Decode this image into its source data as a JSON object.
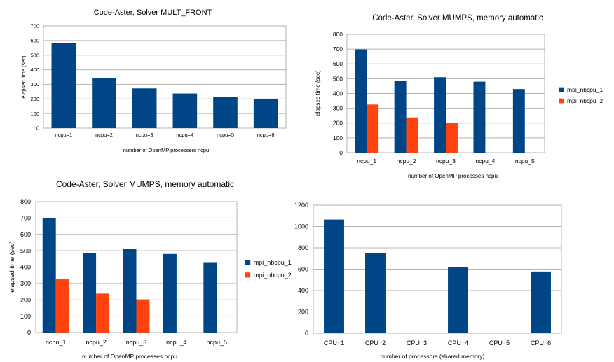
{
  "chart_data": [
    {
      "type": "bar",
      "title": "Code-Aster, Solver MULT_FRONT",
      "xlabel": "number of OpenMP processers ncpu",
      "ylabel": "elapsed time (sec)",
      "categories": [
        "ncpu=1",
        "ncpu=2",
        "ncpu=3",
        "ncpu=4",
        "ncpu=5",
        "ncpu=6"
      ],
      "series": [
        {
          "values": [
            585,
            345,
            272,
            237,
            215,
            198
          ],
          "color": "#004586"
        }
      ],
      "ylim": [
        0,
        700
      ],
      "yticks": [
        0,
        100,
        200,
        300,
        400,
        500,
        600,
        700
      ],
      "grid": true,
      "legend": "none"
    },
    {
      "type": "bar",
      "title": "Code-Aster, Solver MUMPS, memory automatic",
      "xlabel": "number of OpenMP processes ncpu",
      "ylabel": "elapsed time (sec)",
      "categories": [
        "ncpu_1",
        "ncpu_2",
        "ncpu_3",
        "ncpu_4",
        "ncpu_5"
      ],
      "series": [
        {
          "name": "mpi_nbcpu_1",
          "values": [
            698,
            485,
            510,
            480,
            430
          ],
          "color": "#004586"
        },
        {
          "name": "mpi_nbcpu_2",
          "values": [
            325,
            238,
            203,
            null,
            null
          ],
          "color": "#ff420e"
        }
      ],
      "ylim": [
        0,
        800
      ],
      "yticks": [
        0,
        100,
        200,
        300,
        400,
        500,
        600,
        700,
        800
      ],
      "grid": true,
      "legend": "right"
    },
    {
      "type": "bar",
      "title": "Code-Aster, Solver MUMPS, memory automatic",
      "xlabel": "number of OpenMP processes ncpu",
      "ylabel": "elapsed time (sec)",
      "categories": [
        "ncpu_1",
        "ncpu_2",
        "ncpu_3",
        "ncpu_4",
        "ncpu_5"
      ],
      "series": [
        {
          "name": "mpi_nbcpu_1",
          "values": [
            698,
            485,
            510,
            480,
            430
          ],
          "color": "#004586"
        },
        {
          "name": "mpi_nbcpu_2",
          "values": [
            325,
            238,
            203,
            null,
            null
          ],
          "color": "#ff420e"
        }
      ],
      "ylim": [
        0,
        800
      ],
      "yticks": [
        0,
        100,
        200,
        300,
        400,
        500,
        600,
        700,
        800
      ],
      "grid": true,
      "legend": "right"
    },
    {
      "type": "bar",
      "title": "",
      "xlabel": "number of processors (shared memory)",
      "ylabel": "",
      "categories": [
        "CPU=1",
        "CPU=2",
        "CPU=3",
        "CPU=4",
        "CPU=5",
        "CPU=6"
      ],
      "series": [
        {
          "values": [
            1065,
            752,
            null,
            617,
            null,
            578
          ],
          "color": "#004586"
        }
      ],
      "ylim": [
        0,
        1200
      ],
      "yticks": [
        0,
        200,
        400,
        600,
        800,
        1000,
        1200
      ],
      "grid": true,
      "legend": "none"
    }
  ]
}
